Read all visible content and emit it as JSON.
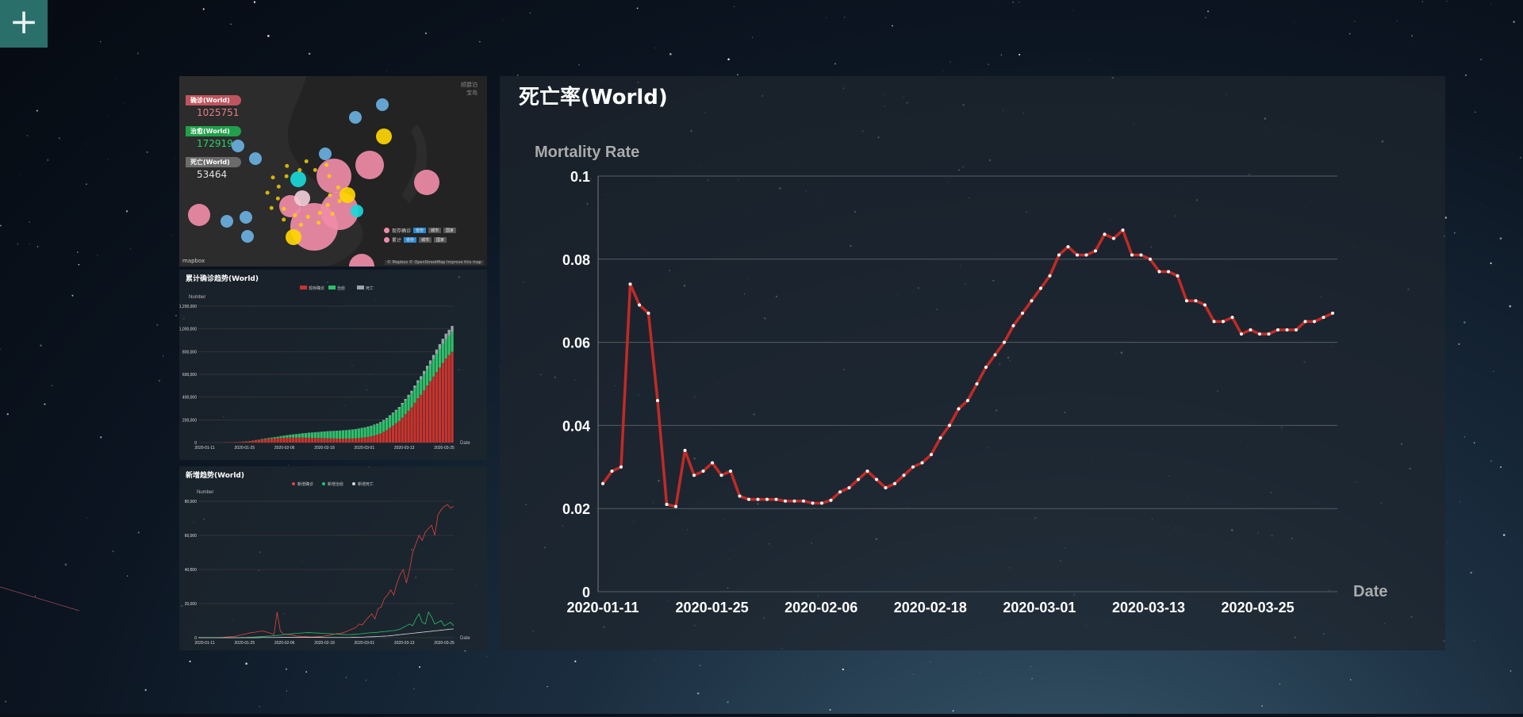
{
  "toolbar": {
    "add_label": "+"
  },
  "map": {
    "corner_lines": [
      "顺爵泊",
      "宝岛"
    ],
    "stats": [
      {
        "label": "确诊(World)",
        "value": "1025751",
        "tag_color": "#c0545e",
        "value_color": "#e67f86"
      },
      {
        "label": "治愈(World)",
        "value": "172919",
        "tag_color": "#21a04a",
        "value_color": "#29d36a"
      },
      {
        "label": "死亡(World)",
        "value": "53464",
        "tag_color": "#6b6b6b",
        "value_color": "#e0e0e0"
      }
    ],
    "logo": "mapbox",
    "attribution": "© Mapbox © OpenStreetMap  Improve this map",
    "legend": {
      "row1_label": "现存确诊",
      "row2_label": "累计",
      "buttons": [
        "省份",
        "城市",
        "国家"
      ]
    }
  },
  "cumulative_chart": {
    "title": "累计确诊趋势(World)",
    "chart_data": {
      "type": "bar",
      "ylabel": "Number",
      "xlabel": "Date",
      "ylim": [
        0,
        1200000
      ],
      "yticks": [
        "0",
        "200,000",
        "400,000",
        "600,000",
        "800,000",
        "1,000,000",
        "1,200,000"
      ],
      "xticks": [
        "2020-01-11",
        "2020-01-25",
        "2020-02-06",
        "2020-02-18",
        "2020-03-01",
        "2020-03-13",
        "2020-03-25"
      ],
      "legend": [
        "现存确诊",
        "治愈",
        "死亡"
      ],
      "colors": [
        "#c8342d",
        "#2dc06a",
        "#9aa4ac"
      ],
      "series": [
        {
          "name": "现存确诊",
          "values": [
            0,
            0,
            0,
            0,
            0,
            1,
            1,
            1,
            2,
            2,
            3,
            4,
            5,
            6,
            8,
            10,
            13,
            16,
            20,
            23,
            27,
            30,
            33,
            35,
            37,
            39,
            41,
            42,
            43,
            44,
            44,
            44,
            44,
            44,
            43,
            43,
            42,
            41,
            40,
            40,
            39,
            38,
            37,
            36,
            35,
            35,
            35,
            35,
            36,
            37,
            38,
            40,
            43,
            46,
            50,
            55,
            62,
            70,
            80,
            95,
            110,
            130,
            150,
            170,
            190,
            220,
            250,
            280,
            310,
            350,
            390,
            420,
            460,
            500,
            540,
            580,
            620,
            660,
            700,
            740,
            770,
            800
          ]
        },
        {
          "name": "治愈",
          "values": [
            0,
            0,
            0,
            0,
            0,
            0,
            0,
            0,
            0,
            0,
            0,
            0,
            0,
            0,
            1,
            1,
            1,
            2,
            2,
            3,
            4,
            5,
            6,
            8,
            10,
            12,
            14,
            17,
            20,
            23,
            26,
            29,
            32,
            35,
            38,
            41,
            44,
            47,
            50,
            53,
            56,
            59,
            62,
            64,
            66,
            68,
            70,
            72,
            74,
            76,
            78,
            80,
            82,
            84,
            86,
            88,
            90,
            92,
            94,
            96,
            98,
            100,
            103,
            106,
            110,
            114,
            118,
            122,
            126,
            130,
            134,
            138,
            142,
            146,
            150,
            155,
            160,
            164,
            168,
            170,
            171,
            173
          ]
        },
        {
          "name": "死亡",
          "values": [
            0,
            0,
            0,
            0,
            0,
            0,
            0,
            0,
            0,
            0,
            0,
            0,
            0,
            0,
            0,
            0,
            0,
            0,
            0,
            0,
            1,
            1,
            1,
            1,
            1,
            1,
            2,
            2,
            2,
            2,
            2,
            2,
            2,
            3,
            3,
            3,
            3,
            3,
            3,
            3,
            3,
            3,
            3,
            3,
            3,
            3,
            3,
            3,
            3,
            3,
            3,
            4,
            4,
            4,
            5,
            5,
            6,
            6,
            7,
            8,
            9,
            10,
            11,
            12,
            13,
            15,
            16,
            18,
            20,
            22,
            24,
            26,
            28,
            30,
            33,
            36,
            39,
            42,
            45,
            48,
            51,
            53
          ]
        }
      ],
      "value_unit_multiplier": 1000
    }
  },
  "daily_chart": {
    "title": "新增趋势(World)",
    "chart_data": {
      "type": "line",
      "ylabel": "Number",
      "xlabel": "Date",
      "ylim": [
        0,
        80000
      ],
      "yticks": [
        "0",
        "20,000",
        "40,000",
        "60,000",
        "80,000"
      ],
      "xticks": [
        "2020-01-11",
        "2020-01-25",
        "2020-02-06",
        "2020-02-18",
        "2020-03-01",
        "2020-03-13",
        "2020-03-25"
      ],
      "legend": [
        "新增确诊",
        "新增治愈",
        "新增死亡"
      ],
      "colors": [
        "#e0443a",
        "#2dc06a",
        "#d9d9d9"
      ],
      "series": [
        {
          "name": "新增确诊",
          "values": [
            0,
            0,
            0,
            0,
            0,
            0,
            0,
            100,
            200,
            400,
            500,
            700,
            900,
            1400,
            1900,
            2100,
            2700,
            3000,
            3200,
            3600,
            3900,
            3700,
            3100,
            2600,
            2000,
            15000,
            4000,
            2100,
            1900,
            1800,
            1600,
            1000,
            900,
            700,
            600,
            500,
            400,
            500,
            600,
            700,
            1000,
            1200,
            1500,
            2000,
            2500,
            2300,
            3000,
            3600,
            4500,
            5200,
            6000,
            8000,
            7500,
            10000,
            12000,
            14000,
            11000,
            17000,
            18000,
            23000,
            25000,
            28000,
            25000,
            32000,
            37000,
            40000,
            32000,
            40000,
            50000,
            55000,
            60000,
            57000,
            62000,
            64000,
            66000,
            60000,
            72000,
            75000,
            77000,
            78000,
            76000,
            77000
          ]
        },
        {
          "name": "新增治愈",
          "values": [
            0,
            0,
            0,
            0,
            0,
            0,
            0,
            0,
            0,
            0,
            0,
            0,
            0,
            0,
            100,
            100,
            200,
            300,
            400,
            500,
            600,
            800,
            900,
            1000,
            1200,
            1300,
            1500,
            1800,
            2000,
            2200,
            2400,
            2500,
            2600,
            2800,
            2900,
            3000,
            2900,
            2800,
            2700,
            2600,
            2500,
            2400,
            2300,
            2200,
            2100,
            2000,
            1900,
            1800,
            1800,
            1900,
            2000,
            2200,
            2400,
            2600,
            2800,
            2900,
            3000,
            3200,
            3400,
            3600,
            3800,
            4000,
            4200,
            4500,
            5000,
            6000,
            7000,
            8000,
            7000,
            11000,
            14000,
            9000,
            8000,
            15000,
            12000,
            8000,
            9000,
            10000,
            7000,
            8000,
            9000,
            7000
          ]
        },
        {
          "name": "新增死亡",
          "values": [
            0,
            0,
            0,
            0,
            0,
            0,
            0,
            0,
            0,
            0,
            0,
            0,
            0,
            0,
            0,
            0,
            0,
            0,
            0,
            0,
            100,
            100,
            100,
            100,
            100,
            100,
            200,
            200,
            200,
            200,
            200,
            200,
            200,
            200,
            200,
            200,
            200,
            200,
            200,
            200,
            100,
            100,
            100,
            100,
            100,
            100,
            100,
            100,
            100,
            200,
            200,
            300,
            300,
            400,
            500,
            500,
            600,
            700,
            800,
            900,
            1000,
            1200,
            1400,
            1600,
            1800,
            2000,
            2200,
            2400,
            2600,
            2800,
            3000,
            3200,
            3400,
            3600,
            3800,
            4000,
            4200,
            4400,
            4600,
            4800,
            5000,
            5100
          ]
        }
      ]
    }
  },
  "mortality_chart": {
    "title": "死亡率(World)",
    "chart_data": {
      "type": "line",
      "ylabel": "Mortality Rate",
      "xlabel": "Date",
      "ylim": [
        0,
        0.1
      ],
      "yticks": [
        "0",
        "0.02",
        "0.04",
        "0.06",
        "0.08",
        "0.1"
      ],
      "xticks": [
        "2020-01-11",
        "2020-01-25",
        "2020-02-06",
        "2020-02-18",
        "2020-03-01",
        "2020-03-13",
        "2020-03-25"
      ],
      "line_color": "#c22a25",
      "point_color": "#ffffff",
      "series": [
        {
          "name": "",
          "values": [
            0.026,
            0.029,
            0.03,
            0.074,
            0.069,
            0.067,
            0.046,
            0.021,
            0.0205,
            0.034,
            0.028,
            0.029,
            0.031,
            0.028,
            0.029,
            0.023,
            0.0222,
            0.0222,
            0.0222,
            0.0222,
            0.0218,
            0.0218,
            0.0218,
            0.0213,
            0.0213,
            0.022,
            0.024,
            0.025,
            0.027,
            0.029,
            0.027,
            0.025,
            0.026,
            0.028,
            0.03,
            0.031,
            0.033,
            0.037,
            0.04,
            0.044,
            0.046,
            0.05,
            0.054,
            0.057,
            0.06,
            0.064,
            0.067,
            0.07,
            0.073,
            0.076,
            0.081,
            0.083,
            0.081,
            0.081,
            0.082,
            0.086,
            0.085,
            0.087,
            0.081,
            0.081,
            0.08,
            0.077,
            0.077,
            0.076,
            0.07,
            0.07,
            0.069,
            0.065,
            0.065,
            0.066,
            0.062,
            0.063,
            0.062,
            0.062,
            0.063,
            0.063,
            0.063,
            0.065,
            0.065,
            0.066,
            0.067
          ]
        }
      ]
    }
  }
}
